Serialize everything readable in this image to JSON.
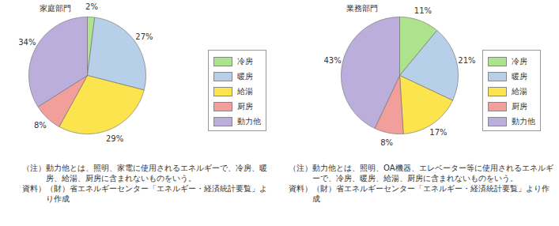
{
  "chart_data": [
    {
      "type": "pie",
      "title": "家庭部門",
      "categories": [
        "冷房",
        "暖房",
        "給湯",
        "厨房",
        "動力他"
      ],
      "values": [
        2,
        27,
        29,
        8,
        34
      ],
      "value_labels": [
        "2%",
        "27%",
        "29%",
        "8%",
        "34%"
      ],
      "colors": [
        "#aee38e",
        "#b7cfe8",
        "#fbe44d",
        "#f29e9b",
        "#bcaedb"
      ],
      "data_labels": true,
      "legend": "right",
      "annotations": [
        "（注）動力他とは、照明、家電に使用されるエネルギーで、冷房、暖房、給湯、厨房に含まれないものをいう。",
        "資料）（財）省エネルギーセンター「エネルギー・経済統計要覧」より作成"
      ]
    },
    {
      "type": "pie",
      "title": "業務部門",
      "categories": [
        "冷房",
        "暖房",
        "給湯",
        "厨房",
        "動力他"
      ],
      "values": [
        11,
        21,
        17,
        8,
        43
      ],
      "value_labels": [
        "11%",
        "21%",
        "17%",
        "8%",
        "43%"
      ],
      "colors": [
        "#aee38e",
        "#b7cfe8",
        "#fbe44d",
        "#f29e9b",
        "#bcaedb"
      ],
      "data_labels": true,
      "legend": "right",
      "annotations": [
        "（注）動力他とは、照明、OA機器、エレベーター等に使用されるエネルギーで、冷房、暖房、給湯、厨房に含まれないものをいう。",
        "資料）（財）省エネルギーセンター「エネルギー・経済統計要覧」より作成"
      ]
    }
  ]
}
